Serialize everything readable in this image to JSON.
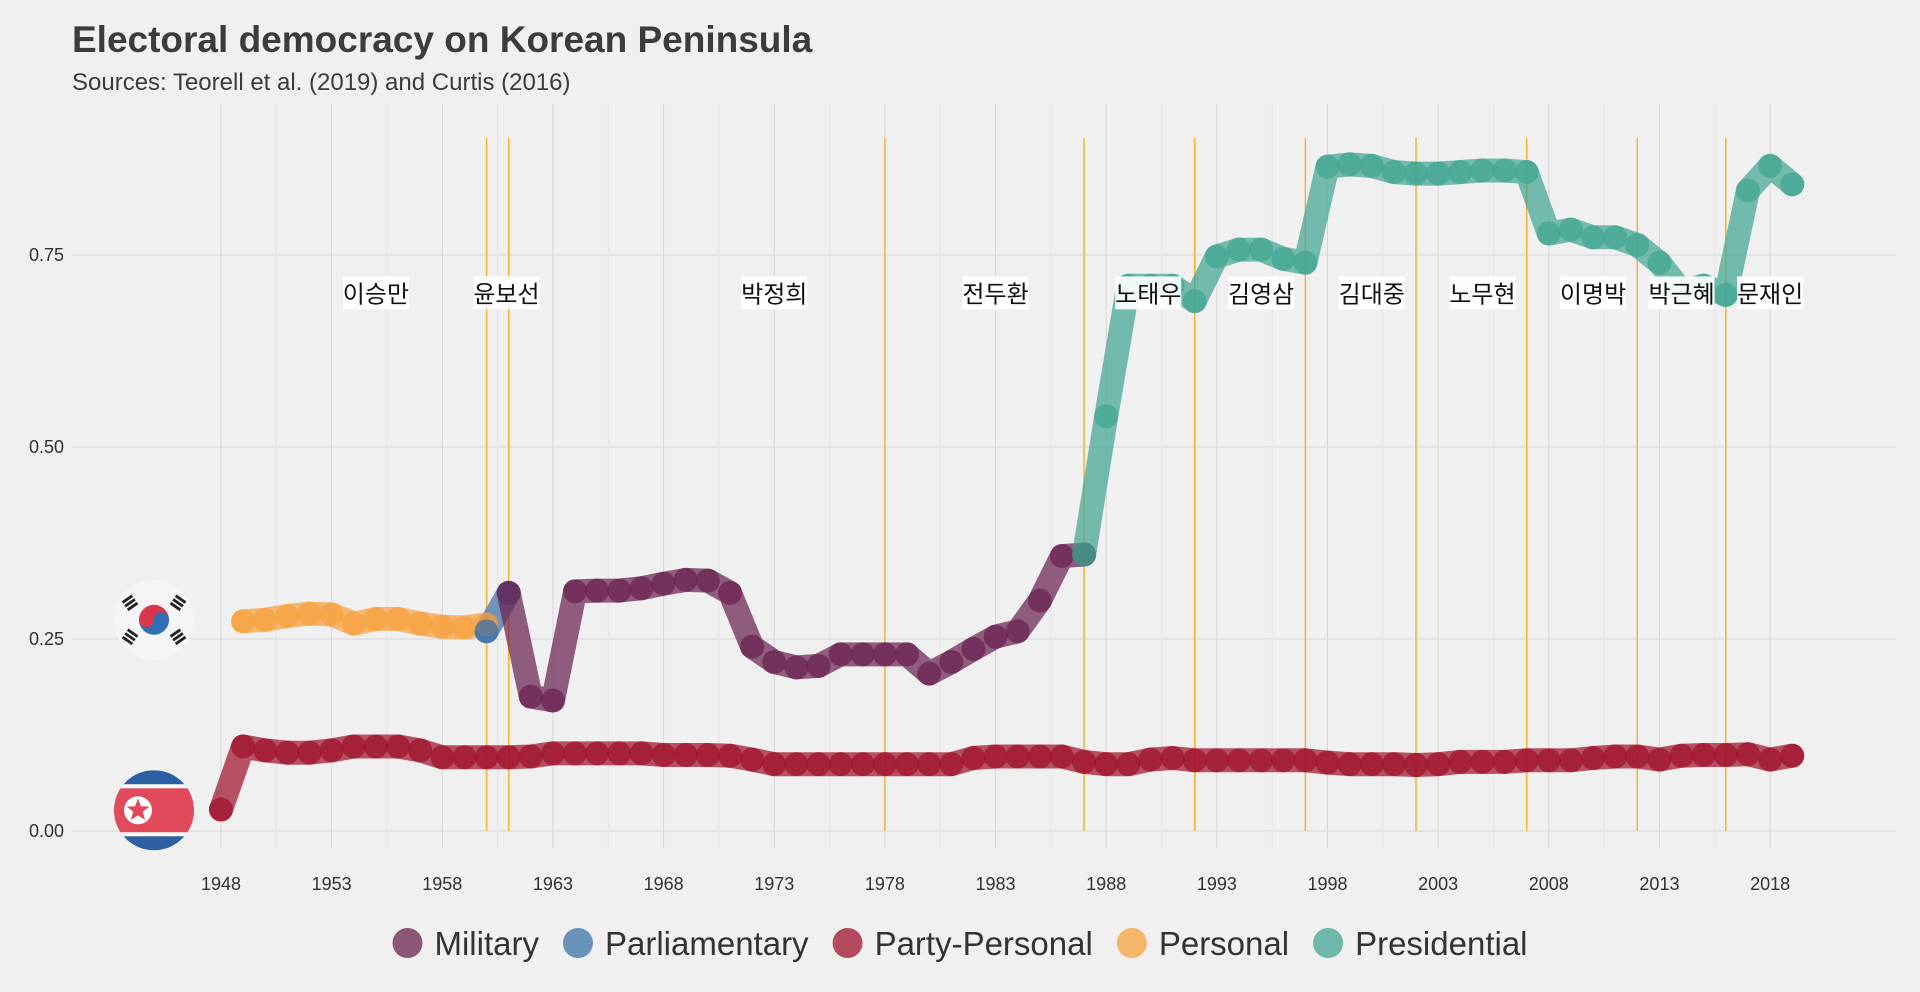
{
  "chart_data": {
    "type": "line",
    "title": "Electoral democracy on Korean Peninsula",
    "subtitle": "Sources: Teorell et al. (2019) and Curtis (2016)",
    "xlabel": "",
    "ylabel": "",
    "xlim": [
      1948,
      2019
    ],
    "ylim": [
      0,
      0.9
    ],
    "x_ticks": [
      1948,
      1953,
      1958,
      1963,
      1968,
      1973,
      1978,
      1983,
      1988,
      1993,
      1998,
      2003,
      2008,
      2013,
      2018
    ],
    "y_ticks": [
      0.0,
      0.25,
      0.5,
      0.75
    ],
    "y_tick_labels": [
      "0.00",
      "0.25",
      "0.50",
      "0.75"
    ],
    "colors": {
      "Military": "#6b2350",
      "Parliamentary": "#3e72a8",
      "Party-Personal": "#a0132c",
      "Personal": "#f7a13e",
      "Presidential": "#41a592",
      "leader_line": "#f5b233",
      "grid": "#d6d6d6"
    },
    "legend": {
      "position": "bottom",
      "entries": [
        "Military",
        "Parliamentary",
        "Party-Personal",
        "Personal",
        "Presidential"
      ]
    },
    "leader_changes": [
      1960,
      1961,
      1978,
      1987,
      1992,
      1997,
      2002,
      2007,
      2012,
      2016
    ],
    "leaders": [
      {
        "name": "이승만",
        "x": 1955
      },
      {
        "name": "윤보선",
        "x": 1960.9
      },
      {
        "name": "박정희",
        "x": 1973
      },
      {
        "name": "전두환",
        "x": 1983
      },
      {
        "name": "노태우",
        "x": 1989.9
      },
      {
        "name": "김영삼",
        "x": 1995
      },
      {
        "name": "김대중",
        "x": 2000
      },
      {
        "name": "노무현",
        "x": 2005
      },
      {
        "name": "이명박",
        "x": 2010
      },
      {
        "name": "박근혜",
        "x": 2014
      },
      {
        "name": "문재인",
        "x": 2018
      }
    ],
    "flags": [
      {
        "name": "south-korea-flag",
        "y": 0.275
      },
      {
        "name": "north-korea-flag",
        "y": 0.027
      }
    ],
    "series": [
      {
        "country": "South Korea",
        "segments": [
          {
            "regime": "Personal",
            "points": [
              [
                1949,
                0.273
              ],
              [
                1950,
                0.275
              ],
              [
                1951,
                0.28
              ],
              [
                1952,
                0.283
              ],
              [
                1953,
                0.282
              ],
              [
                1954,
                0.27
              ],
              [
                1955,
                0.276
              ],
              [
                1956,
                0.276
              ],
              [
                1957,
                0.27
              ],
              [
                1958,
                0.266
              ],
              [
                1959,
                0.265
              ],
              [
                1960,
                0.269
              ]
            ]
          },
          {
            "regime": "Parliamentary",
            "points": [
              [
                1960,
                0.26
              ],
              [
                1961,
                0.31
              ]
            ]
          },
          {
            "regime": "Military",
            "points": [
              [
                1961,
                0.31
              ],
              [
                1962,
                0.175
              ],
              [
                1963,
                0.17
              ],
              [
                1964,
                0.312
              ],
              [
                1965,
                0.313
              ],
              [
                1966,
                0.313
              ],
              [
                1967,
                0.316
              ],
              [
                1968,
                0.322
              ],
              [
                1969,
                0.327
              ],
              [
                1970,
                0.326
              ],
              [
                1971,
                0.31
              ],
              [
                1972,
                0.24
              ],
              [
                1973,
                0.22
              ],
              [
                1974,
                0.213
              ],
              [
                1975,
                0.215
              ],
              [
                1976,
                0.23
              ],
              [
                1977,
                0.23
              ],
              [
                1978,
                0.23
              ],
              [
                1979,
                0.23
              ],
              [
                1980,
                0.205
              ],
              [
                1981,
                0.22
              ],
              [
                1982,
                0.237
              ],
              [
                1983,
                0.253
              ],
              [
                1984,
                0.26
              ],
              [
                1985,
                0.3
              ],
              [
                1986,
                0.358
              ],
              [
                1987,
                0.36
              ]
            ]
          },
          {
            "regime": "Presidential",
            "points": [
              [
                1987,
                0.36
              ],
              [
                1988,
                0.54
              ],
              [
                1989,
                0.71
              ],
              [
                1990,
                0.71
              ],
              [
                1991,
                0.71
              ],
              [
                1992,
                0.69
              ],
              [
                1993,
                0.748
              ],
              [
                1994,
                0.757
              ],
              [
                1995,
                0.757
              ],
              [
                1996,
                0.745
              ],
              [
                1997,
                0.74
              ],
              [
                1998,
                0.865
              ],
              [
                1999,
                0.868
              ],
              [
                2000,
                0.866
              ],
              [
                2001,
                0.858
              ],
              [
                2002,
                0.856
              ],
              [
                2003,
                0.856
              ],
              [
                2004,
                0.858
              ],
              [
                2005,
                0.86
              ],
              [
                2006,
                0.86
              ],
              [
                2007,
                0.858
              ],
              [
                2008,
                0.778
              ],
              [
                2009,
                0.783
              ],
              [
                2010,
                0.773
              ],
              [
                2011,
                0.773
              ],
              [
                2012,
                0.763
              ],
              [
                2013,
                0.74
              ],
              [
                2014,
                0.703
              ],
              [
                2015,
                0.71
              ],
              [
                2016,
                0.698
              ],
              [
                2017,
                0.834
              ],
              [
                2018,
                0.866
              ],
              [
                2019,
                0.842
              ]
            ]
          }
        ]
      },
      {
        "country": "North Korea",
        "segments": [
          {
            "regime": "Party-Personal",
            "points": [
              [
                1948,
                0.028
              ],
              [
                1949,
                0.11
              ],
              [
                1950,
                0.105
              ],
              [
                1951,
                0.102
              ],
              [
                1952,
                0.102
              ],
              [
                1953,
                0.105
              ],
              [
                1954,
                0.11
              ],
              [
                1955,
                0.11
              ],
              [
                1956,
                0.11
              ],
              [
                1957,
                0.105
              ],
              [
                1958,
                0.096
              ],
              [
                1959,
                0.096
              ],
              [
                1960,
                0.096
              ],
              [
                1961,
                0.096
              ],
              [
                1962,
                0.097
              ],
              [
                1963,
                0.101
              ],
              [
                1964,
                0.101
              ],
              [
                1965,
                0.101
              ],
              [
                1966,
                0.101
              ],
              [
                1967,
                0.101
              ],
              [
                1968,
                0.099
              ],
              [
                1969,
                0.099
              ],
              [
                1970,
                0.099
              ],
              [
                1971,
                0.098
              ],
              [
                1972,
                0.093
              ],
              [
                1973,
                0.087
              ],
              [
                1974,
                0.087
              ],
              [
                1975,
                0.087
              ],
              [
                1976,
                0.087
              ],
              [
                1977,
                0.087
              ],
              [
                1978,
                0.087
              ],
              [
                1979,
                0.087
              ],
              [
                1980,
                0.087
              ],
              [
                1981,
                0.087
              ],
              [
                1982,
                0.095
              ],
              [
                1983,
                0.097
              ],
              [
                1984,
                0.097
              ],
              [
                1985,
                0.097
              ],
              [
                1986,
                0.097
              ],
              [
                1987,
                0.09
              ],
              [
                1988,
                0.087
              ],
              [
                1989,
                0.087
              ],
              [
                1990,
                0.093
              ],
              [
                1991,
                0.095
              ],
              [
                1992,
                0.092
              ],
              [
                1993,
                0.092
              ],
              [
                1994,
                0.092
              ],
              [
                1995,
                0.092
              ],
              [
                1996,
                0.092
              ],
              [
                1997,
                0.092
              ],
              [
                1998,
                0.089
              ],
              [
                1999,
                0.087
              ],
              [
                2000,
                0.087
              ],
              [
                2001,
                0.087
              ],
              [
                2002,
                0.086
              ],
              [
                2003,
                0.087
              ],
              [
                2004,
                0.09
              ],
              [
                2005,
                0.09
              ],
              [
                2006,
                0.09
              ],
              [
                2007,
                0.092
              ],
              [
                2008,
                0.092
              ],
              [
                2009,
                0.092
              ],
              [
                2010,
                0.095
              ],
              [
                2011,
                0.097
              ],
              [
                2012,
                0.097
              ],
              [
                2013,
                0.093
              ],
              [
                2014,
                0.098
              ],
              [
                2015,
                0.099
              ],
              [
                2016,
                0.099
              ],
              [
                2017,
                0.1
              ],
              [
                2018,
                0.093
              ],
              [
                2019,
                0.098
              ]
            ]
          }
        ]
      }
    ]
  }
}
